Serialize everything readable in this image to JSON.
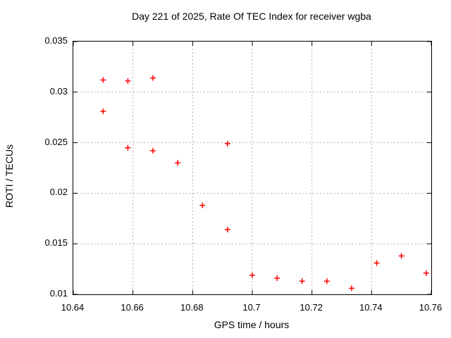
{
  "window": {
    "background": "#ffffff",
    "text_color": "#000000"
  },
  "chart_data": {
    "type": "scatter",
    "title": "Day 221 of 2025, Rate Of TEC Index for receiver wgba",
    "xlabel": "GPS time / hours",
    "ylabel": "ROTI / TECUs",
    "xlim": [
      10.64,
      10.76
    ],
    "ylim": [
      0.01,
      0.035
    ],
    "xticks": {
      "values": [
        10.64,
        10.66,
        10.68,
        10.7,
        10.72,
        10.74,
        10.76
      ],
      "labels": [
        "10.64",
        "10.66",
        "10.68",
        "10.7",
        "10.72",
        "10.74",
        "10.76"
      ]
    },
    "yticks": {
      "values": [
        0.01,
        0.015,
        0.02,
        0.025,
        0.03,
        0.035
      ],
      "labels": [
        "0.01",
        "0.015",
        "0.02",
        "0.025",
        "0.03",
        "0.035"
      ]
    },
    "grid": true,
    "legend_position": "none",
    "marker": {
      "shape": "plus",
      "color": "#ff0000",
      "size": 8,
      "stroke_width": 1.5
    },
    "series": [
      {
        "name": "roti",
        "points": [
          [
            10.65,
            0.0312
          ],
          [
            10.65,
            0.0281
          ],
          [
            10.6583,
            0.0311
          ],
          [
            10.6583,
            0.0245
          ],
          [
            10.6667,
            0.0314
          ],
          [
            10.6667,
            0.0242
          ],
          [
            10.675,
            0.023
          ],
          [
            10.6833,
            0.0188
          ],
          [
            10.6917,
            0.0249
          ],
          [
            10.6917,
            0.0164
          ],
          [
            10.7,
            0.0119
          ],
          [
            10.7083,
            0.0116
          ],
          [
            10.7167,
            0.0113
          ],
          [
            10.725,
            0.0113
          ],
          [
            10.7333,
            0.0106
          ],
          [
            10.7417,
            0.0131
          ],
          [
            10.75,
            0.0138
          ],
          [
            10.7583,
            0.0121
          ]
        ]
      }
    ],
    "colors": {
      "marker": "#ff0000",
      "grid": "#b0b0b0",
      "frame": "#000000",
      "background": "#ffffff"
    }
  }
}
